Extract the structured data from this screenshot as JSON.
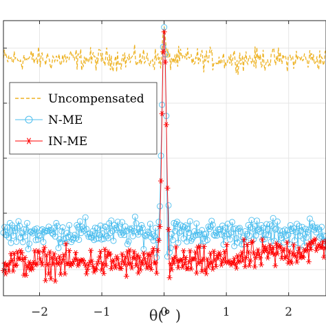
{
  "chart_data": {
    "type": "line",
    "title": "",
    "xlabel": "θ(°  )",
    "ylabel": "",
    "x_range": [
      -2.58,
      2.6
    ],
    "y_range": [
      0,
      1
    ],
    "xticks": [
      -2,
      -1,
      0,
      1,
      2
    ],
    "xtick_labels": [
      "−2",
      "−1",
      "0",
      "1",
      "2"
    ],
    "yticks": [
      0.095,
      0.3,
      0.5,
      0.7,
      0.9
    ],
    "grid": true,
    "legend_position": "center-left",
    "series": [
      {
        "name": "Uncompensated",
        "style": "dashed",
        "color": "#EDB120",
        "peak": {
          "x": 0.0,
          "y": 0.98
        },
        "baseline": 0.86,
        "noise": 0.03
      },
      {
        "name": "N-ME",
        "style": "line-circle",
        "color": "#4DBEEE",
        "peak": {
          "x": 0.0,
          "y": 0.985
        },
        "baseline": 0.23,
        "noise": 0.035
      },
      {
        "name": "IN-ME",
        "style": "line-star",
        "color": "#FF0000",
        "peak": {
          "x": 0.0,
          "y": 0.975
        },
        "baseline": 0.12,
        "noise": 0.04
      }
    ]
  }
}
